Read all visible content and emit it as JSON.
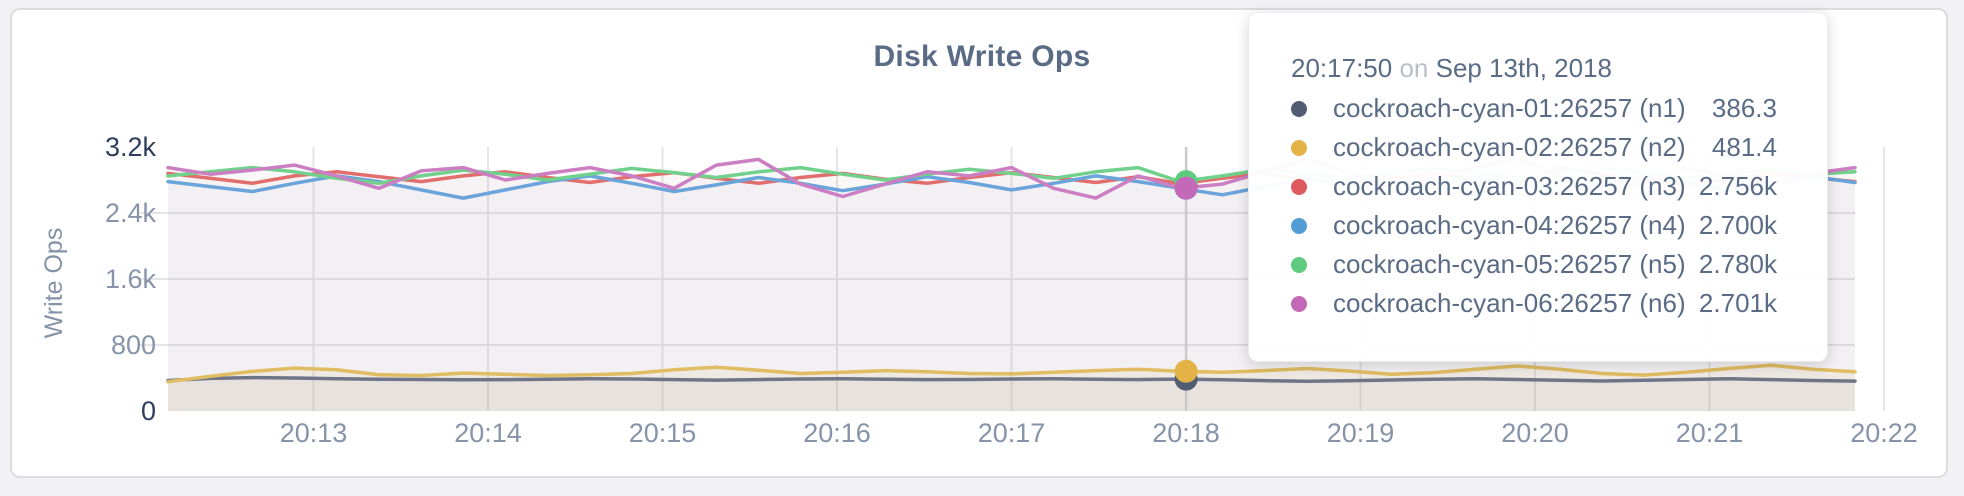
{
  "header": {
    "title": "Disk Write Ops"
  },
  "colors": {
    "n1": "#525c72",
    "n2": "#e3b348",
    "n3": "#dd5a5e",
    "n4": "#539dd5",
    "n5": "#5ecb7e",
    "n6": "#c469b8",
    "grid": "#e5e5e7",
    "axis_label": "#8693a9",
    "axis_label_emphasis": "#2d3e5e",
    "hover_line": "#c9c9cc",
    "title": "#5a6b85"
  },
  "tooltip": {
    "time": "20:17:50",
    "on": "on",
    "date": "Sep 13th, 2018",
    "rows": [
      {
        "series": "n1",
        "label": "cockroach-cyan-01:26257 (n1)",
        "value": "386.3"
      },
      {
        "series": "n2",
        "label": "cockroach-cyan-02:26257 (n2)",
        "value": "481.4"
      },
      {
        "series": "n3",
        "label": "cockroach-cyan-03:26257 (n3)",
        "value": "2.756k"
      },
      {
        "series": "n4",
        "label": "cockroach-cyan-04:26257 (n4)",
        "value": "2.700k"
      },
      {
        "series": "n5",
        "label": "cockroach-cyan-05:26257 (n5)",
        "value": "2.780k"
      },
      {
        "series": "n6",
        "label": "cockroach-cyan-06:26257 (n6)",
        "value": "2.701k"
      }
    ]
  },
  "chart_data": {
    "type": "line",
    "title": "Disk Write Ops",
    "xlabel": "",
    "ylabel": "Write Ops",
    "ylim": [
      0,
      3200
    ],
    "grid": true,
    "x_ticks": [
      "20:13",
      "20:14",
      "20:15",
      "20:16",
      "20:17",
      "20:18",
      "20:19",
      "20:20",
      "20:21",
      "20:22"
    ],
    "y_ticks": [
      {
        "label": "0",
        "value": 0,
        "emphasis": true
      },
      {
        "label": "800",
        "value": 800,
        "emphasis": false
      },
      {
        "label": "1.6k",
        "value": 1600,
        "emphasis": false
      },
      {
        "label": "2.4k",
        "value": 2400,
        "emphasis": false
      },
      {
        "label": "3.2k",
        "value": 3200,
        "emphasis": true
      }
    ],
    "hover": {
      "time": "20:17:50",
      "date": "Sep 13th, 2018",
      "x_frac": 0.6035,
      "values": {
        "n1": 386.3,
        "n2": 481.4,
        "n3": 2756,
        "n4": 2700,
        "n5": 2780,
        "n6": 2701
      }
    },
    "series": [
      {
        "id": "n1",
        "name": "cockroach-cyan-01:26257 (n1)",
        "color": "#6f7588",
        "fill_opacity": 0.05,
        "values": [
          370,
          395,
          405,
          400,
          392,
          386,
          382,
          378,
          380,
          386,
          392,
          388,
          380,
          374,
          380,
          388,
          392,
          386,
          380,
          382,
          388,
          392,
          386,
          380,
          386.3,
          378,
          368,
          360,
          366,
          376,
          386,
          390,
          382,
          372,
          364,
          372,
          382,
          390,
          380,
          370,
          362
        ]
      },
      {
        "id": "n2",
        "name": "cockroach-cyan-02:26257 (n2)",
        "color": "#e0bc62",
        "fill_opacity": 0.1,
        "values": [
          355,
          420,
          480,
          520,
          500,
          440,
          430,
          460,
          445,
          430,
          440,
          455,
          500,
          530,
          495,
          455,
          470,
          490,
          475,
          455,
          450,
          470,
          490,
          505,
          481.4,
          470,
          490,
          515,
          485,
          445,
          465,
          505,
          545,
          505,
          455,
          435,
          470,
          515,
          555,
          505,
          475
        ]
      },
      {
        "id": "n3",
        "name": "cockroach-cyan-03:26257 (n3)",
        "color": "#e26d6d",
        "fill_opacity": 0.035,
        "values": [
          2880,
          2820,
          2760,
          2850,
          2900,
          2840,
          2780,
          2850,
          2900,
          2830,
          2770,
          2840,
          2890,
          2820,
          2760,
          2830,
          2880,
          2810,
          2760,
          2830,
          2890,
          2830,
          2770,
          2840,
          2756,
          2820,
          2880,
          2810,
          2750,
          2820,
          2880,
          2820,
          2760,
          2950,
          2870,
          2790,
          2740,
          2810,
          2880,
          2830,
          2780
        ]
      },
      {
        "id": "n4",
        "name": "cockroach-cyan-04:26257 (n4)",
        "color": "#6aa4da",
        "fill_opacity": 0.035,
        "values": [
          2780,
          2720,
          2660,
          2760,
          2850,
          2780,
          2680,
          2580,
          2680,
          2780,
          2850,
          2760,
          2660,
          2740,
          2830,
          2760,
          2670,
          2750,
          2840,
          2770,
          2680,
          2760,
          2850,
          2780,
          2700,
          2620,
          2720,
          2810,
          2740,
          2650,
          2740,
          2830,
          2750,
          2660,
          2750,
          2840,
          2760,
          2680,
          2760,
          2840,
          2770
        ]
      },
      {
        "id": "n5",
        "name": "cockroach-cyan-05:26257 (n5)",
        "color": "#71d08c",
        "fill_opacity": 0.035,
        "values": [
          2850,
          2900,
          2950,
          2900,
          2820,
          2760,
          2850,
          2920,
          2870,
          2800,
          2870,
          2940,
          2890,
          2830,
          2900,
          2950,
          2870,
          2800,
          2870,
          2930,
          2880,
          2820,
          2900,
          2950,
          2780,
          2850,
          2930,
          2880,
          2820,
          2880,
          2940,
          2890,
          2830,
          2900,
          2950,
          2880,
          2820,
          2880,
          2930,
          2870,
          2900
        ]
      },
      {
        "id": "n6",
        "name": "cockroach-cyan-06:26257 (n6)",
        "color": "#cb7ec2",
        "fill_opacity": 0.035,
        "values": [
          2950,
          2870,
          2920,
          2980,
          2850,
          2700,
          2910,
          2950,
          2800,
          2880,
          2950,
          2850,
          2700,
          2980,
          3050,
          2750,
          2600,
          2750,
          2900,
          2850,
          2950,
          2700,
          2580,
          2850,
          2701,
          2750,
          2900,
          3060,
          2880,
          2700,
          2850,
          2950,
          3060,
          2850,
          2650,
          2780,
          2950,
          2850,
          2750,
          2880,
          2950
        ]
      }
    ]
  }
}
